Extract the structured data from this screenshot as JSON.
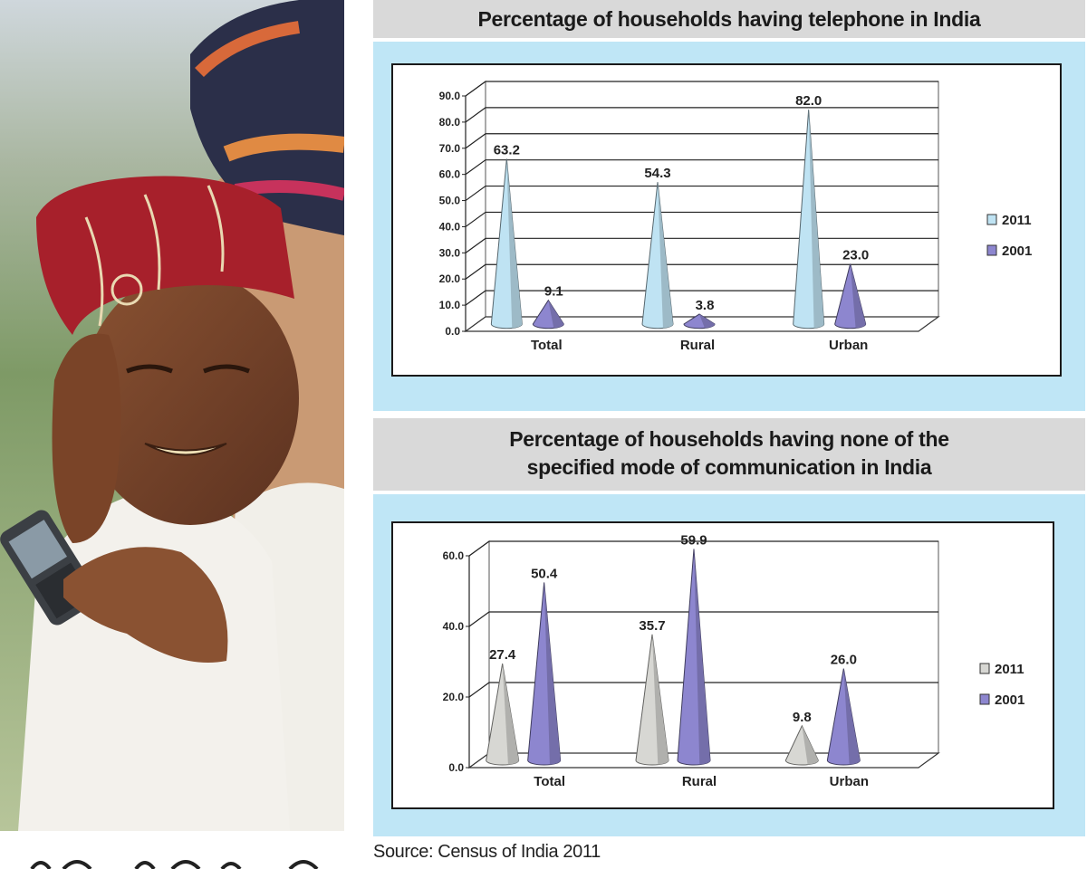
{
  "chart_data": [
    {
      "type": "bar",
      "title": "Percentage of households having  telephone in India",
      "categories": [
        "Total",
        "Rural",
        "Urban"
      ],
      "series": [
        {
          "name": "2011",
          "values": [
            63.2,
            54.3,
            82.0
          ],
          "color": "#bfe3f3"
        },
        {
          "name": "2001",
          "values": [
            9.1,
            3.8,
            23.0
          ],
          "color": "#8d86cf"
        }
      ],
      "value_labels": [
        [
          "63.2",
          "54.3",
          "82.0"
        ],
        [
          "9.1",
          "3.8",
          "23.0"
        ]
      ],
      "yticks": [
        "0.0",
        "10.0",
        "20.0",
        "30.0",
        "40.0",
        "50.0",
        "60.0",
        "70.0",
        "80.0",
        "90.0"
      ],
      "ylim": [
        0,
        90
      ],
      "xlabel": "",
      "ylabel": "",
      "legend": "right",
      "grid": true
    },
    {
      "type": "bar",
      "title_lines": [
        "Percentage of households having none of the",
        "specified mode of communication in India"
      ],
      "categories": [
        "Total",
        "Rural",
        "Urban"
      ],
      "series": [
        {
          "name": "2011",
          "values": [
            27.4,
            35.7,
            9.8
          ],
          "color": "#d7d7d3"
        },
        {
          "name": "2001",
          "values": [
            50.4,
            59.9,
            26.0
          ],
          "color": "#8d86cf"
        }
      ],
      "value_labels": [
        [
          "27.4",
          "35.7",
          "9.8"
        ],
        [
          "50.4",
          "59.9",
          "26.0"
        ]
      ],
      "yticks": [
        "0.0",
        "20.0",
        "40.0",
        "60.0"
      ],
      "ylim": [
        0,
        60
      ],
      "xlabel": "",
      "ylabel": "",
      "legend": "right",
      "grid": true
    }
  ],
  "source": "Source: Census of India 2011",
  "photo": {
    "description_icon": "photo-men-with-mobile-phone"
  }
}
